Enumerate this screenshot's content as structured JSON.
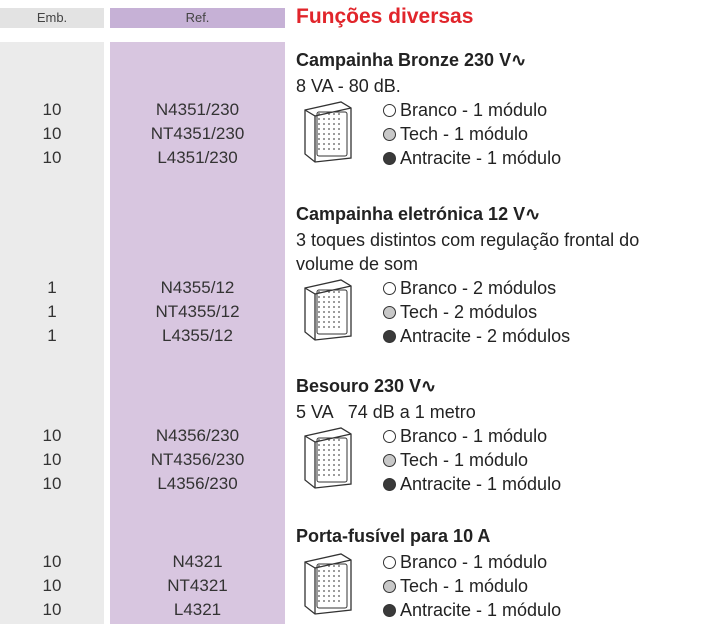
{
  "header": {
    "emb": "Emb.",
    "ref": "Ref.",
    "title": "Funções diversas"
  },
  "products": [
    {
      "title": "Campainha Bronze 230 V∿",
      "description": [
        "8 VA - 80 dB."
      ],
      "variants": [
        {
          "emb": "10",
          "ref": "N4351/230",
          "finish": "Branco - 1 módulo"
        },
        {
          "emb": "10",
          "ref": "NT4351/230",
          "finish": "Tech - 1 módulo"
        },
        {
          "emb": "10",
          "ref": "L4351/230",
          "finish": "Antracite - 1 módulo"
        }
      ]
    },
    {
      "title": "Campainha eletrónica 12 V∿",
      "description": [
        "3 toques distintos com regulação frontal do",
        "volume de som"
      ],
      "variants": [
        {
          "emb": "1",
          "ref": "N4355/12",
          "finish": "Branco - 2 módulos"
        },
        {
          "emb": "1",
          "ref": "NT4355/12",
          "finish": "Tech - 2 módulos"
        },
        {
          "emb": "1",
          "ref": "L4355/12",
          "finish": "Antracite - 2 módulos"
        }
      ]
    },
    {
      "title": "Besouro 230 V∿",
      "description": [
        "5 VA   74 dB a 1 metro"
      ],
      "variants": [
        {
          "emb": "10",
          "ref": "N4356/230",
          "finish": "Branco - 1 módulo"
        },
        {
          "emb": "10",
          "ref": "NT4356/230",
          "finish": "Tech - 1 módulo"
        },
        {
          "emb": "10",
          "ref": "L4356/230",
          "finish": "Antracite - 1 módulo"
        }
      ]
    },
    {
      "title": "Porta-fusível para 10 A",
      "description": [],
      "variants": [
        {
          "emb": "10",
          "ref": "N4321",
          "finish": "Branco - 1 módulo"
        },
        {
          "emb": "10",
          "ref": "NT4321",
          "finish": "Tech - 1 módulo"
        },
        {
          "emb": "10",
          "ref": "L4321",
          "finish": "Antracite - 1 módulo"
        }
      ]
    }
  ]
}
